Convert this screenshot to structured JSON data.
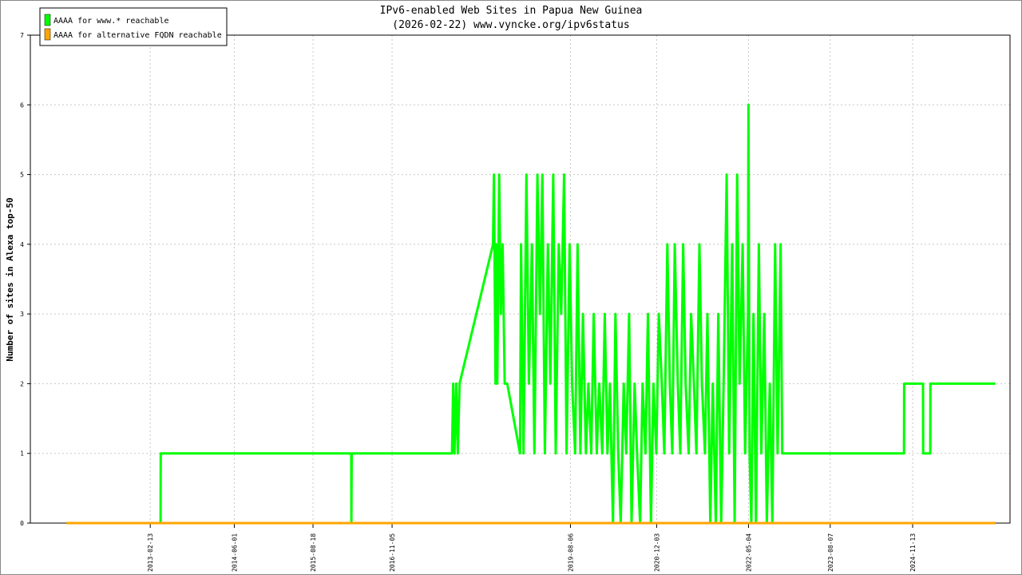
{
  "chart_data": {
    "type": "line",
    "title": "IPv6-enabled Web Sites in Papua New Guinea",
    "subtitle": "(2026-02-22) www.vyncke.org/ipv6status",
    "y_label": "Number of sites in Alexa top-50",
    "legend": "top-left",
    "grid": true,
    "xlim": [
      "2011-04-10",
      "2026-05-15"
    ],
    "xticks": [
      "2013-02-13",
      "2014-06-01",
      "2015-08-18",
      "2016-11-05",
      "2019-08-06",
      "2020-12-03",
      "2022-05-04",
      "2023-08-07",
      "2024-11-13"
    ],
    "ylim": [
      0,
      7
    ],
    "yticks": [
      0,
      1,
      2,
      3,
      4,
      5,
      6,
      7
    ],
    "series": [
      {
        "name": "AAAA for www.* reachable",
        "color": "#00ff00",
        "x": [
          "2011-10-30",
          "2013-04-12",
          "2013-04-13",
          "2016-03-20",
          "2016-03-21",
          "2016-03-23",
          "2017-10-07",
          "2017-10-08",
          "2017-10-15",
          "2017-10-22",
          "2017-11-01",
          "2017-11-10",
          "2017-11-20",
          "2018-05-27",
          "2018-06-01",
          "2018-06-10",
          "2018-06-15",
          "2018-06-20",
          "2018-07-01",
          "2018-07-10",
          "2018-07-20",
          "2018-08-01",
          "2018-08-15",
          "2018-10-26",
          "2018-11-01",
          "2018-11-15",
          "2018-12-01",
          "2018-12-15",
          "2019-01-01",
          "2019-01-15",
          "2019-02-01",
          "2019-02-15",
          "2019-03-01",
          "2019-03-15",
          "2019-04-01",
          "2019-04-15",
          "2019-05-01",
          "2019-05-15",
          "2019-06-01",
          "2019-06-15",
          "2019-07-01",
          "2019-07-15",
          "2019-08-01",
          "2019-08-15",
          "2019-09-01",
          "2019-09-15",
          "2019-10-01",
          "2019-10-15",
          "2019-11-01",
          "2019-11-15",
          "2019-12-01",
          "2019-12-15",
          "2020-01-01",
          "2020-01-15",
          "2020-02-01",
          "2020-02-15",
          "2020-03-01",
          "2020-03-15",
          "2020-04-01",
          "2020-04-15",
          "2020-05-01",
          "2020-05-15",
          "2020-06-01",
          "2020-06-15",
          "2020-07-01",
          "2020-07-15",
          "2020-08-01",
          "2020-08-15",
          "2020-09-01",
          "2020-09-15",
          "2020-10-01",
          "2020-10-15",
          "2020-11-01",
          "2020-11-15",
          "2020-12-01",
          "2020-12-15",
          "2021-01-01",
          "2021-01-15",
          "2021-02-01",
          "2021-02-15",
          "2021-03-01",
          "2021-03-15",
          "2021-04-01",
          "2021-04-15",
          "2021-05-01",
          "2021-05-15",
          "2021-06-01",
          "2021-06-15",
          "2021-07-01",
          "2021-07-15",
          "2021-08-01",
          "2021-08-15",
          "2021-09-01",
          "2021-09-15",
          "2021-10-01",
          "2021-10-15",
          "2021-11-01",
          "2021-11-15",
          "2021-12-01",
          "2021-12-15",
          "2022-01-01",
          "2022-01-15",
          "2022-02-01",
          "2022-02-15",
          "2022-03-01",
          "2022-03-15",
          "2022-04-01",
          "2022-04-15",
          "2022-05-01",
          "2022-05-04",
          "2022-05-10",
          "2022-05-20",
          "2022-06-01",
          "2022-06-15",
          "2022-07-01",
          "2022-07-15",
          "2022-08-01",
          "2022-08-15",
          "2022-09-01",
          "2022-09-15",
          "2022-10-01",
          "2022-10-15",
          "2022-11-01",
          "2022-11-10",
          "2024-09-25",
          "2024-09-26",
          "2025-01-10",
          "2025-01-11",
          "2025-02-20",
          "2025-02-21",
          "2026-02-22"
        ],
        "values": [
          0,
          0,
          1,
          1,
          0,
          1,
          1,
          1,
          2,
          1,
          2,
          1,
          2,
          4,
          5,
          2,
          4,
          2,
          5,
          3,
          4,
          2,
          2,
          1,
          4,
          1,
          5,
          2,
          4,
          1,
          5,
          3,
          5,
          1,
          4,
          2,
          5,
          1,
          4,
          3,
          5,
          1,
          4,
          2,
          1,
          4,
          1,
          3,
          1,
          2,
          1,
          3,
          1,
          2,
          1,
          3,
          1,
          2,
          0,
          3,
          1,
          0,
          2,
          1,
          3,
          0,
          2,
          1,
          0,
          2,
          1,
          3,
          0,
          2,
          1,
          3,
          2,
          1,
          4,
          2,
          1,
          4,
          2,
          1,
          4,
          2,
          1,
          3,
          2,
          1,
          4,
          2,
          1,
          3,
          0,
          2,
          0,
          3,
          0,
          2,
          5,
          1,
          4,
          0,
          5,
          2,
          4,
          1,
          3,
          6,
          1,
          0,
          3,
          0,
          4,
          1,
          3,
          0,
          2,
          0,
          4,
          1,
          4,
          1,
          1,
          2,
          2,
          1,
          1,
          2,
          2
        ]
      },
      {
        "name": "AAAA for alternative FQDN reachable",
        "color": "#ffa500",
        "x": [
          "2011-10-30",
          "2026-02-22"
        ],
        "values": [
          0,
          0
        ]
      }
    ]
  }
}
